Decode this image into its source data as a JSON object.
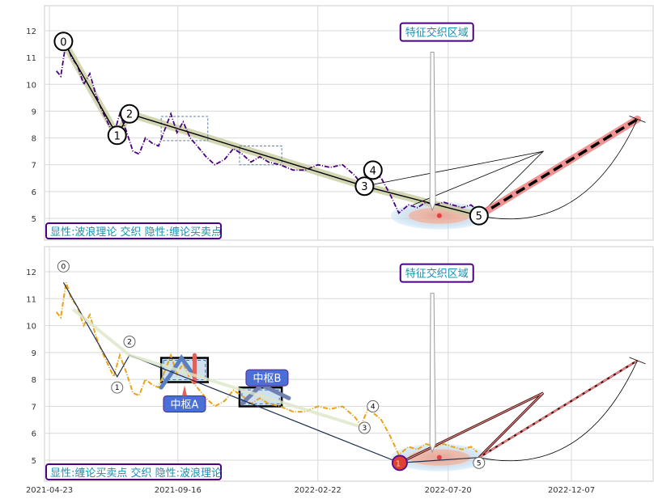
{
  "chart_data": [
    {
      "type": "line",
      "panel": "top",
      "ylim": [
        4.2,
        12.9
      ],
      "yticks": [
        5,
        6,
        7,
        8,
        9,
        10,
        11,
        12
      ],
      "grid": true,
      "caption": "显性:波浪理论 交织 隐性:缠论买卖点",
      "annotation": "特征交织区域",
      "series": [
        {
          "style": "price-dashdot",
          "color": "#4b0082",
          "x": [
            "2021-05-01",
            "2021-05-06",
            "2021-05-12",
            "2021-05-18",
            "2021-05-25",
            "2021-06-01",
            "2021-06-08",
            "2021-06-15",
            "2021-06-22",
            "2021-06-28",
            "2021-07-05",
            "2021-07-12",
            "2021-07-19",
            "2021-07-27",
            "2021-08-03",
            "2021-08-10",
            "2021-08-18",
            "2021-08-25",
            "2021-09-01",
            "2021-09-08",
            "2021-09-15",
            "2021-09-22",
            "2021-09-30",
            "2021-10-08",
            "2021-10-18",
            "2021-10-28",
            "2021-11-08",
            "2021-11-18",
            "2021-11-28",
            "2021-12-08",
            "2021-12-18",
            "2021-12-28",
            "2022-01-10",
            "2022-01-25",
            "2022-02-08",
            "2022-02-22",
            "2022-03-08",
            "2022-03-22",
            "2022-04-05",
            "2022-04-12",
            "2022-04-20",
            "2022-04-28",
            "2022-05-05",
            "2022-05-15",
            "2022-05-25",
            "2022-06-05",
            "2022-06-15",
            "2022-06-25",
            "2022-07-05",
            "2022-07-15",
            "2022-07-25",
            "2022-08-05",
            "2022-08-15",
            "2022-08-22"
          ],
          "y": [
            10.5,
            10.3,
            11.6,
            11.0,
            10.7,
            10.0,
            10.4,
            9.6,
            9.0,
            8.6,
            8.1,
            8.9,
            8.3,
            7.5,
            7.4,
            8.0,
            7.8,
            7.7,
            8.3,
            8.9,
            8.2,
            8.6,
            8.0,
            7.7,
            7.3,
            7.0,
            7.2,
            7.6,
            7.4,
            7.1,
            7.3,
            7.1,
            7.0,
            6.8,
            6.8,
            7.0,
            6.9,
            7.0,
            6.6,
            6.3,
            6.9,
            6.7,
            6.5,
            5.9,
            5.2,
            5.5,
            5.4,
            5.6,
            5.5,
            5.6,
            5.5,
            5.4,
            5.5,
            5.3
          ]
        },
        {
          "style": "wave-path",
          "color": "#000000",
          "x": [
            "2021-05-09",
            "2021-07-09",
            "2021-07-23",
            "2022-04-16",
            "2022-08-24"
          ],
          "y": [
            11.6,
            8.1,
            8.9,
            6.2,
            5.1
          ]
        },
        {
          "style": "forecast-dashed",
          "color": "#000000",
          "x": [
            "2022-08-24",
            "2023-02-20"
          ],
          "y": [
            5.1,
            8.7
          ]
        }
      ],
      "points": [
        {
          "label": "0",
          "x": "2021-05-09",
          "y": 11.6
        },
        {
          "label": "1",
          "x": "2021-07-09",
          "y": 8.1
        },
        {
          "label": "2",
          "x": "2021-07-23",
          "y": 8.9
        },
        {
          "label": "3",
          "x": "2022-04-16",
          "y": 6.2
        },
        {
          "label": "4",
          "x": "2022-04-20",
          "y": 6.8
        },
        {
          "label": "5",
          "x": "2022-08-24",
          "y": 5.1
        }
      ]
    },
    {
      "type": "line",
      "panel": "bottom",
      "ylim": [
        4.2,
        12.9
      ],
      "yticks": [
        5,
        6,
        7,
        8,
        9,
        10,
        11,
        12
      ],
      "xticks": [
        "2021-04-23",
        "2021-09-16",
        "2022-02-22",
        "2022-07-20",
        "2022-12-07"
      ],
      "grid": true,
      "caption": "显性:缠论买卖点 交织 隐性:波浪理论",
      "annotation": "特征交织区域",
      "zones": [
        {
          "label": "中枢A",
          "from": "2021-08-28",
          "to": "2021-10-20",
          "low": 7.9,
          "high": 8.8
        },
        {
          "label": "中枢B",
          "from": "2021-11-25",
          "to": "2022-01-12",
          "low": 7.0,
          "high": 7.7
        }
      ],
      "series": [
        {
          "style": "price-dashdot",
          "color": "#e8a317",
          "x": [
            "2021-05-01",
            "2021-05-06",
            "2021-05-12",
            "2021-05-18",
            "2021-05-25",
            "2021-06-01",
            "2021-06-08",
            "2021-06-15",
            "2021-06-22",
            "2021-06-28",
            "2021-07-05",
            "2021-07-12",
            "2021-07-19",
            "2021-07-27",
            "2021-08-03",
            "2021-08-10",
            "2021-08-18",
            "2021-08-25",
            "2021-09-01",
            "2021-09-08",
            "2021-09-15",
            "2021-09-22",
            "2021-09-30",
            "2021-10-08",
            "2021-10-18",
            "2021-10-28",
            "2021-11-08",
            "2021-11-18",
            "2021-11-28",
            "2021-12-08",
            "2021-12-18",
            "2021-12-28",
            "2022-01-10",
            "2022-01-25",
            "2022-02-08",
            "2022-02-22",
            "2022-03-08",
            "2022-03-22",
            "2022-04-05",
            "2022-04-12",
            "2022-04-20",
            "2022-04-28",
            "2022-05-05",
            "2022-05-15",
            "2022-05-25",
            "2022-06-05",
            "2022-06-15",
            "2022-06-25",
            "2022-07-05",
            "2022-07-15",
            "2022-07-25",
            "2022-08-05",
            "2022-08-15",
            "2022-08-22"
          ],
          "y": [
            10.5,
            10.3,
            11.6,
            11.0,
            10.7,
            10.0,
            10.4,
            9.6,
            9.0,
            8.6,
            8.1,
            8.9,
            8.3,
            7.5,
            7.4,
            8.0,
            7.8,
            7.7,
            8.3,
            8.9,
            8.2,
            8.6,
            8.0,
            7.7,
            7.3,
            7.0,
            7.2,
            7.6,
            7.4,
            7.1,
            7.3,
            7.1,
            7.0,
            6.8,
            6.8,
            7.0,
            6.9,
            7.0,
            6.6,
            6.3,
            6.9,
            6.7,
            6.5,
            5.9,
            5.2,
            5.5,
            5.4,
            5.6,
            5.5,
            5.6,
            5.5,
            5.4,
            5.5,
            5.3
          ]
        },
        {
          "style": "forecast-dashed",
          "color": "#f08080",
          "x": [
            "2022-08-24",
            "2023-02-20"
          ],
          "y": [
            5.1,
            8.7
          ]
        }
      ],
      "points": [
        {
          "label": "0",
          "x": "2021-05-09",
          "y": 12.2
        },
        {
          "label": "1",
          "x": "2021-07-09",
          "y": 7.7
        },
        {
          "label": "2",
          "x": "2021-07-23",
          "y": 9.4
        },
        {
          "label": "3",
          "x": "2022-04-16",
          "y": 6.2
        },
        {
          "label": "4",
          "x": "2022-04-20",
          "y": 7.0
        },
        {
          "label": "5",
          "x": "2022-08-24",
          "y": 4.9
        }
      ],
      "buy_point": {
        "label": "1",
        "x": "2022-05-26",
        "y": 4.9
      }
    }
  ]
}
